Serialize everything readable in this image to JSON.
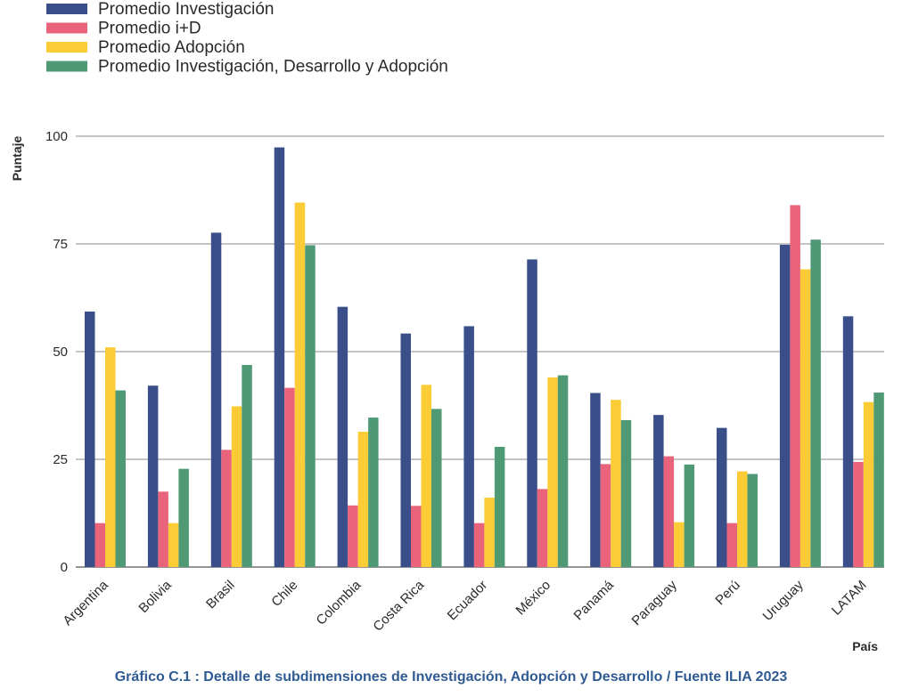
{
  "caption": "Gráfico C.1 : Detalle de subdimensiones de Investigación, Adopción y Desarrollo / Fuente ILIA 2023",
  "chart_data": {
    "type": "bar",
    "ylabel": "Puntaje",
    "xlabel": "País",
    "ylim": [
      0,
      100
    ],
    "yticks": [
      "0",
      "25",
      "50",
      "75",
      "100"
    ],
    "grid": true,
    "legend_position": "top-left",
    "categories": [
      "Argentina",
      "Bolivia",
      "Brasil",
      "Chile",
      "Colombia",
      "Costa Rica",
      "Ecuador",
      "México",
      "Panamá",
      "Paraguay",
      "Perú",
      "Uruguay",
      "LATAM"
    ],
    "series": [
      {
        "name": "Promedio Investigación",
        "color": "#3a4f8a",
        "values": [
          59.3,
          42.1,
          77.6,
          97.4,
          60.4,
          54.2,
          55.9,
          71.4,
          40.4,
          35.3,
          32.3,
          74.8,
          58.2
        ]
      },
      {
        "name": "Promedio i+D",
        "color": "#e9647a",
        "values": [
          10.2,
          17.5,
          27.2,
          41.6,
          14.3,
          14.2,
          10.2,
          18.1,
          23.9,
          25.7,
          10.2,
          84.0,
          24.4
        ]
      },
      {
        "name": "Promedio Adopción",
        "color": "#fccc36",
        "values": [
          51.0,
          10.2,
          37.3,
          84.6,
          31.4,
          42.3,
          16.1,
          44.0,
          38.8,
          10.4,
          22.2,
          69.1,
          38.3
        ]
      },
      {
        "name": "Promedio Investigación, Desarrollo y Adopción",
        "color": "#4f9a75",
        "values": [
          41.0,
          22.8,
          46.9,
          74.7,
          34.7,
          36.7,
          27.9,
          44.5,
          34.1,
          23.8,
          21.6,
          76.0,
          40.5
        ]
      }
    ]
  }
}
